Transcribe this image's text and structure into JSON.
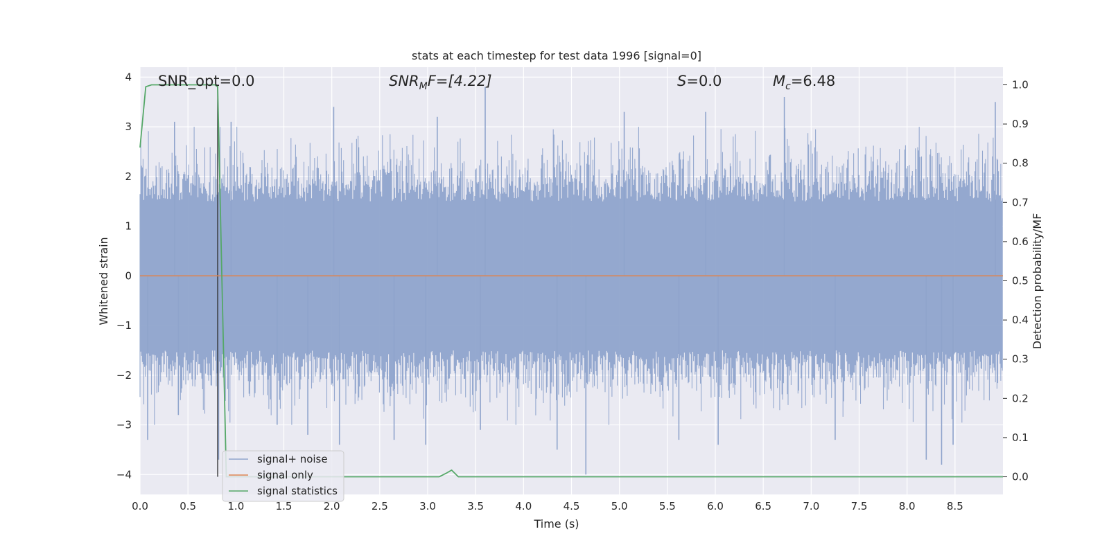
{
  "chart_data": {
    "type": "line",
    "title": "stats at each timestep for test data 1996 [signal=0]",
    "xlabel": "Time (s)",
    "ylabel": "Whitened strain",
    "y2label": "Detection probability/MF",
    "xlim": [
      0.0,
      9.0
    ],
    "ylim": [
      -4.4,
      4.2
    ],
    "y2lim": [
      -0.045,
      1.045
    ],
    "x_ticks": [
      0.0,
      0.5,
      1.0,
      1.5,
      2.0,
      2.5,
      3.0,
      3.5,
      4.0,
      4.5,
      5.0,
      5.5,
      6.0,
      6.5,
      7.0,
      7.5,
      8.0,
      8.5
    ],
    "x_tick_labels": [
      "0.0",
      "0.5",
      "1.0",
      "1.5",
      "2.0",
      "2.5",
      "3.0",
      "3.5",
      "4.0",
      "4.5",
      "5.0",
      "5.5",
      "6.0",
      "6.5",
      "7.0",
      "7.5",
      "8.0",
      "8.5"
    ],
    "y_ticks": [
      4,
      3,
      2,
      1,
      0,
      -1,
      -2,
      -3,
      -4
    ],
    "y_tick_labels": [
      "4",
      "3",
      "2",
      "1",
      "0",
      "−1",
      "−2",
      "−3",
      "−4"
    ],
    "y2_ticks": [
      1.0,
      0.9,
      0.8,
      0.7,
      0.6,
      0.5,
      0.4,
      0.3,
      0.2,
      0.1,
      0.0
    ],
    "y2_tick_labels": [
      "1.0",
      "0.9",
      "0.8",
      "0.7",
      "0.6",
      "0.5",
      "0.4",
      "0.3",
      "0.2",
      "0.1",
      "0.0"
    ],
    "grid": true,
    "legend_position": "bottom-left",
    "annotations": {
      "snr_opt": "SNR_opt=0.0",
      "snr_mf_sym": "SNR",
      "snr_mf_sub": "M",
      "snr_mf_rest": "F=[4.22]",
      "s_sym": "S",
      "s_rest": "=0.0",
      "mc_sym": "M",
      "mc_sub": "c",
      "mc_rest": "=6.48"
    },
    "vertical_marker_x": 0.81,
    "series": [
      {
        "name": "signal+ noise",
        "axis": "left",
        "color": "#8fa4cc",
        "envelope_mean_abs": 1.5,
        "extreme_peaks": [
          {
            "x": 0.08,
            "y": -3.3
          },
          {
            "x": 0.36,
            "y": 3.1
          },
          {
            "x": 0.4,
            "y": -2.8
          },
          {
            "x": 0.82,
            "y": -3.7
          },
          {
            "x": 0.95,
            "y": 3.1
          },
          {
            "x": 1.43,
            "y": -3.0
          },
          {
            "x": 1.75,
            "y": -3.2
          },
          {
            "x": 2.02,
            "y": 3.4
          },
          {
            "x": 2.08,
            "y": -3.4
          },
          {
            "x": 2.65,
            "y": -3.3
          },
          {
            "x": 2.98,
            "y": -3.4
          },
          {
            "x": 3.1,
            "y": 3.2
          },
          {
            "x": 3.55,
            "y": -3.1
          },
          {
            "x": 3.6,
            "y": 3.8
          },
          {
            "x": 4.35,
            "y": -3.5
          },
          {
            "x": 4.65,
            "y": -4.0
          },
          {
            "x": 5.05,
            "y": 3.3
          },
          {
            "x": 5.62,
            "y": -3.3
          },
          {
            "x": 5.9,
            "y": 3.3
          },
          {
            "x": 6.03,
            "y": -3.4
          },
          {
            "x": 6.72,
            "y": 3.6
          },
          {
            "x": 7.25,
            "y": -3.3
          },
          {
            "x": 8.2,
            "y": -3.7
          },
          {
            "x": 8.36,
            "y": -3.8
          },
          {
            "x": 8.48,
            "y": -3.4
          },
          {
            "x": 8.92,
            "y": 3.5
          }
        ]
      },
      {
        "name": "signal only",
        "axis": "left",
        "color": "#dd8452",
        "x": [
          0.0,
          9.0
        ],
        "y": [
          0.0,
          0.0
        ]
      },
      {
        "name": "signal statistics",
        "axis": "right",
        "color": "#55a868",
        "x": [
          0.0,
          0.06,
          0.12,
          0.2,
          0.3,
          0.4,
          0.5,
          0.6,
          0.7,
          0.78,
          0.81,
          0.85,
          0.9,
          1.0,
          1.5,
          2.0,
          2.5,
          3.0,
          3.12,
          3.2,
          3.25,
          3.32,
          3.5,
          4.0,
          5.0,
          6.0,
          7.0,
          8.0,
          9.0
        ],
        "y": [
          0.84,
          0.995,
          1.0,
          1.0,
          1.0,
          1.0,
          1.0,
          1.0,
          1.0,
          1.0,
          0.995,
          0.55,
          0.0,
          0.0,
          0.0,
          0.0,
          0.0,
          0.0,
          0.0,
          0.01,
          0.017,
          0.0,
          0.0,
          0.0,
          0.0,
          0.0,
          0.0,
          0.0,
          0.0
        ]
      }
    ]
  }
}
